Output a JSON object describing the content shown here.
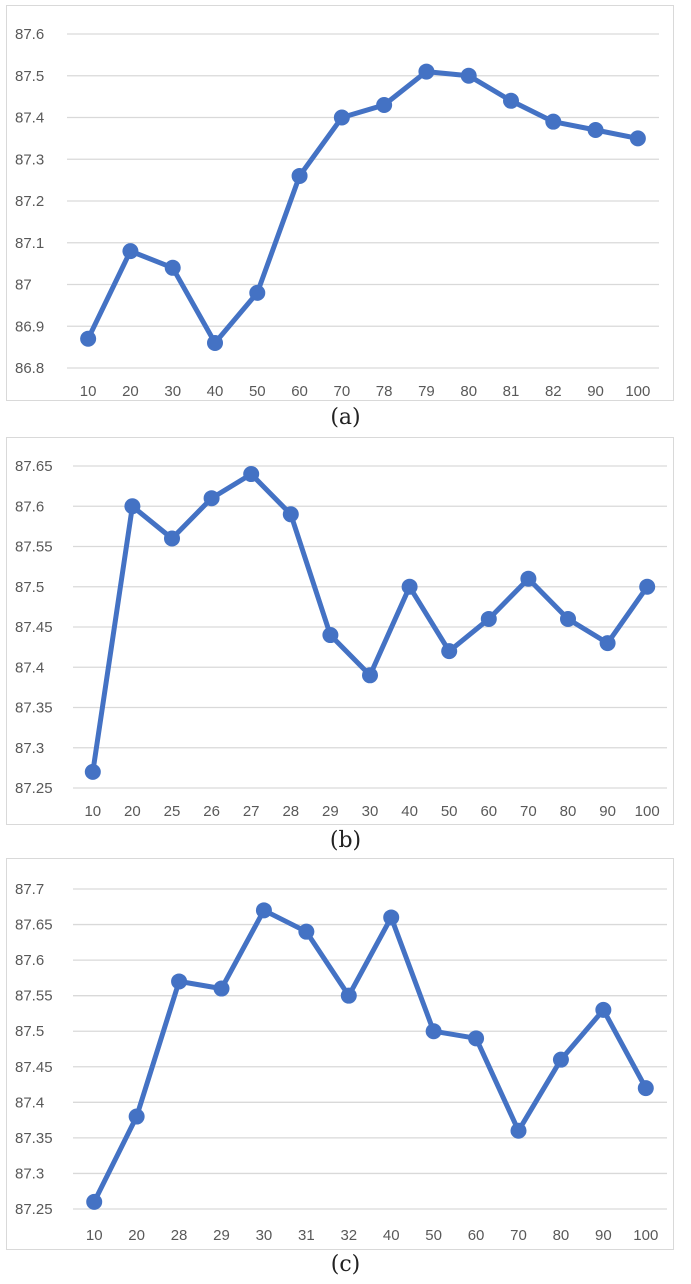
{
  "chart_data": [
    {
      "type": "line",
      "categories": [
        "10",
        "20",
        "30",
        "40",
        "50",
        "60",
        "70",
        "78",
        "79",
        "80",
        "81",
        "82",
        "90",
        "100"
      ],
      "values": [
        86.87,
        87.08,
        87.04,
        86.86,
        86.98,
        87.26,
        87.4,
        87.43,
        87.51,
        87.5,
        87.44,
        87.39,
        87.37,
        87.35
      ],
      "yticks": [
        "86.8",
        "86.9",
        "87",
        "87.1",
        "87.2",
        "87.3",
        "87.4",
        "87.5",
        "87.6"
      ],
      "ylim": [
        86.8,
        87.6
      ],
      "grid": true,
      "color": "#4472c4"
    },
    {
      "type": "line",
      "categories": [
        "10",
        "20",
        "25",
        "26",
        "27",
        "28",
        "29",
        "30",
        "40",
        "50",
        "60",
        "70",
        "80",
        "90",
        "100"
      ],
      "values": [
        87.27,
        87.6,
        87.56,
        87.61,
        87.64,
        87.59,
        87.44,
        87.39,
        87.5,
        87.42,
        87.46,
        87.51,
        87.46,
        87.43,
        87.5
      ],
      "yticks": [
        "87.25",
        "87.3",
        "87.35",
        "87.4",
        "87.45",
        "87.5",
        "87.55",
        "87.6",
        "87.65"
      ],
      "ylim": [
        87.25,
        87.65
      ],
      "grid": true,
      "color": "#4472c4"
    },
    {
      "type": "line",
      "categories": [
        "10",
        "20",
        "28",
        "29",
        "30",
        "31",
        "32",
        "40",
        "50",
        "60",
        "70",
        "80",
        "90",
        "100"
      ],
      "values": [
        87.26,
        87.38,
        87.57,
        87.56,
        87.67,
        87.64,
        87.55,
        87.66,
        87.5,
        87.49,
        87.36,
        87.46,
        87.53,
        87.42
      ],
      "yticks": [
        "87.25",
        "87.3",
        "87.35",
        "87.4",
        "87.45",
        "87.5",
        "87.55",
        "87.6",
        "87.65",
        "87.7"
      ],
      "ylim": [
        87.25,
        87.7
      ],
      "grid": true,
      "color": "#4472c4"
    }
  ],
  "captions": [
    "(a)",
    "(b)",
    "(c)"
  ]
}
